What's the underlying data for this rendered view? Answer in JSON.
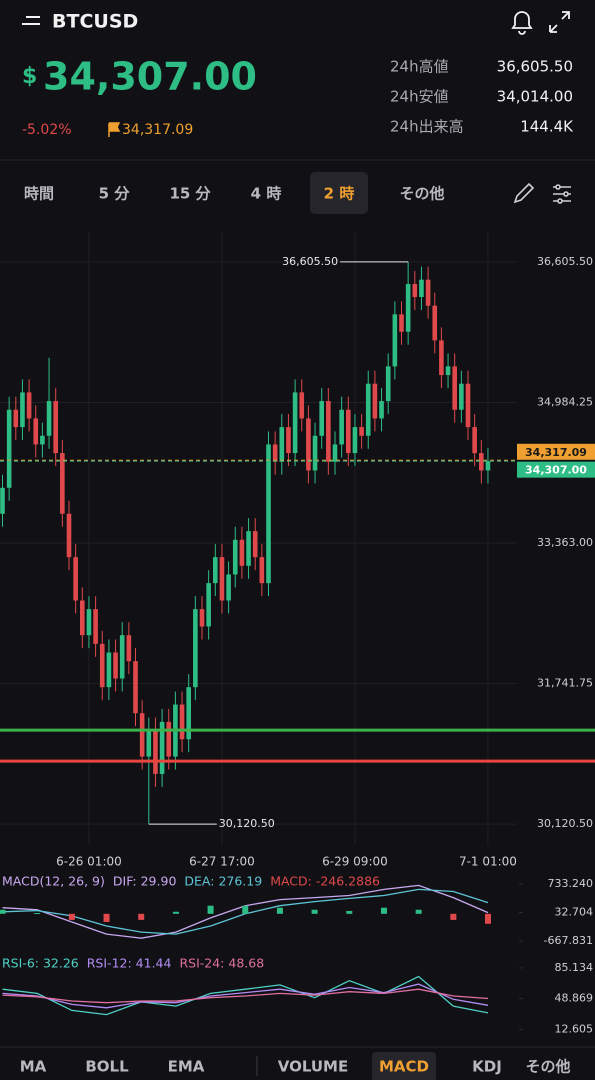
{
  "header": {
    "symbol": "BTCUSD",
    "currency": "$",
    "price": "34,307.00",
    "change": "-5.02%",
    "mark_price": "34,317.09",
    "stats": [
      {
        "label": "24h高値",
        "value": "36,605.50"
      },
      {
        "label": "24h安値",
        "value": "34,014.00"
      },
      {
        "label": "24h出来高",
        "value": "144.4K"
      }
    ]
  },
  "intervals": [
    {
      "label": "時間"
    },
    {
      "label": "5 分"
    },
    {
      "label": "15 分"
    },
    {
      "label": "4 時"
    },
    {
      "label": "2 時",
      "active": true
    },
    {
      "label": "その他"
    }
  ],
  "indicator_tabs": [
    {
      "label": "MA"
    },
    {
      "label": "BOLL"
    },
    {
      "label": "EMA"
    },
    {
      "label": "VOLUME"
    },
    {
      "label": "MACD",
      "active": true
    },
    {
      "label": "KDJ"
    },
    {
      "label": "その他"
    }
  ],
  "chart_data": [
    {
      "type": "candlestick",
      "categories": [
        null,
        null,
        null,
        null,
        null,
        null,
        null,
        null,
        null,
        null,
        null,
        null,
        null,
        "6-26 01:00",
        null,
        null,
        null,
        null,
        null,
        null,
        null,
        null,
        null,
        null,
        null,
        null,
        null,
        null,
        null,
        null,
        null,
        null,
        null,
        "6-27 17:00",
        null,
        null,
        null,
        null,
        null,
        null,
        null,
        null,
        null,
        null,
        null,
        null,
        null,
        null,
        null,
        null,
        null,
        null,
        null,
        "6-29 09:00",
        null,
        null,
        null,
        null,
        null,
        null,
        null,
        null,
        null,
        null,
        null,
        null,
        null,
        null,
        null,
        null,
        null,
        null,
        null,
        "7-1 01:00"
      ],
      "open": [
        33700,
        34000,
        34900,
        34700,
        35100,
        34800,
        34500,
        34600,
        35000,
        34400,
        33700,
        33200,
        32700,
        32300,
        32600,
        32200,
        31700,
        32100,
        31800,
        32300,
        32000,
        31400,
        30900,
        31200,
        30700,
        31300,
        30900,
        31500,
        31100,
        31700,
        32600,
        32400,
        32900,
        33200,
        32700,
        33000,
        33400,
        33100,
        33500,
        33200,
        32900,
        34500,
        34300,
        34700,
        34400,
        35100,
        34800,
        34200,
        34600,
        35000,
        34300,
        34500,
        34900,
        34400,
        34700,
        34600,
        35200,
        34800,
        35000,
        35400,
        36000,
        35800,
        36350,
        36200,
        36400,
        36100,
        35700,
        35300,
        35400,
        34900,
        35200,
        34700,
        34400,
        34200
      ],
      "high": [
        34150,
        35050,
        35050,
        35250,
        35250,
        34950,
        34750,
        35500,
        35150,
        34550,
        33850,
        33350,
        32850,
        32750,
        32750,
        32350,
        32250,
        32250,
        32450,
        32450,
        32150,
        31550,
        31350,
        31350,
        31450,
        31450,
        31650,
        31650,
        31850,
        32750,
        32750,
        33050,
        33350,
        33350,
        33150,
        33550,
        33550,
        33650,
        33650,
        33350,
        34650,
        34650,
        34850,
        34850,
        35250,
        35250,
        34950,
        34750,
        35150,
        35150,
        34650,
        35050,
        35050,
        34850,
        34850,
        35350,
        35350,
        35150,
        35550,
        36150,
        36150,
        36605.5,
        36500,
        36550,
        36550,
        36250,
        35850,
        35550,
        35550,
        35350,
        35350,
        34850,
        34550,
        34457
      ],
      "low": [
        33550,
        33850,
        34550,
        34550,
        34650,
        34350,
        34350,
        34450,
        34250,
        33550,
        33050,
        32550,
        32150,
        32150,
        32050,
        31550,
        31550,
        31650,
        31650,
        31850,
        31250,
        30750,
        30120.5,
        30550,
        30550,
        30750,
        30750,
        30950,
        30950,
        31550,
        32250,
        32250,
        32750,
        32550,
        32550,
        32850,
        32950,
        32950,
        33050,
        32750,
        32750,
        34150,
        34150,
        34250,
        34250,
        34650,
        34050,
        34050,
        34450,
        34150,
        34150,
        34350,
        34250,
        34250,
        34450,
        34450,
        34650,
        34650,
        34850,
        35250,
        35650,
        35650,
        36050,
        36050,
        35950,
        35550,
        35150,
        35150,
        34750,
        34750,
        34550,
        34250,
        34050,
        34050
      ],
      "close": [
        34000,
        34900,
        34700,
        35100,
        34800,
        34500,
        34600,
        35000,
        34400,
        33700,
        33200,
        32700,
        32300,
        32600,
        32200,
        31700,
        32100,
        31800,
        32300,
        32000,
        31400,
        30900,
        31200,
        30700,
        31300,
        30900,
        31500,
        31100,
        31700,
        32600,
        32400,
        32900,
        33200,
        32700,
        33000,
        33400,
        33100,
        33500,
        33200,
        32900,
        34500,
        34300,
        34700,
        34400,
        35100,
        34800,
        34200,
        34600,
        35000,
        34300,
        34500,
        34900,
        34400,
        34700,
        34600,
        35200,
        34800,
        35000,
        35400,
        36000,
        35800,
        36350,
        36200,
        36400,
        36100,
        35700,
        35300,
        35400,
        34900,
        35200,
        34700,
        34400,
        34200,
        34307
      ],
      "up_color": "#2ebd85",
      "down_color": "#e0494b",
      "ylim": [
        29880,
        36950
      ],
      "yticks": [
        {
          "value": 36605.5,
          "label": "36,605.50"
        },
        {
          "value": 34984.25,
          "label": "34,984.25"
        },
        {
          "value": 33363,
          "label": "33,363.00"
        },
        {
          "value": 31741.75,
          "label": "31,741.75"
        },
        {
          "value": 30120.5,
          "label": "30,120.50"
        }
      ],
      "grid": true,
      "levels": [
        {
          "value": 31205,
          "color": "#3cb34a"
        },
        {
          "value": 30847,
          "color": "#e8473f"
        }
      ],
      "price_lines": [
        {
          "value": 34317.09,
          "label": "34,317.09",
          "color": "#f0a030"
        },
        {
          "value": 34307,
          "label": "34,307.00",
          "color": "#2ebd85"
        }
      ],
      "annotations": [
        {
          "value": 36605.5,
          "label": "36,605.50"
        },
        {
          "value": 30120.5,
          "label": "30,120.50"
        }
      ]
    },
    {
      "type": "indicator",
      "title": "MACD(12, 26, 9)",
      "series": [
        {
          "name": "DIF: 29.90",
          "color": "#c8a8f0",
          "values": [
            150,
            100,
            -200,
            -500,
            -600,
            -450,
            -100,
            200,
            350,
            400,
            450,
            600,
            700,
            400,
            30
          ]
        },
        {
          "name": "DEA: 276.19",
          "color": "#5ec5d6",
          "values": [
            50,
            80,
            -50,
            -300,
            -450,
            -500,
            -300,
            0,
            200,
            300,
            380,
            450,
            600,
            550,
            276
          ]
        },
        {
          "name": "MACD: -246.2886",
          "color": "#e0494b",
          "style": "bars",
          "values": [
            100,
            20,
            -150,
            -200,
            -150,
            50,
            200,
            200,
            150,
            100,
            70,
            150,
            100,
            -150,
            -246
          ]
        }
      ],
      "up_color": "#2ebd85",
      "ylim": [
        -890,
        955
      ],
      "yticks": [
        {
          "value": 733.24,
          "label": "733.240"
        },
        32.704,
        -667.831
      ]
    },
    {
      "type": "indicator",
      "series": [
        {
          "name": "RSI-6: 32.26",
          "color": "#4fd1c5",
          "values": [
            60,
            55,
            35,
            30,
            45,
            40,
            55,
            60,
            65,
            50,
            70,
            55,
            75,
            40,
            32
          ]
        },
        {
          "name": "RSI-12: 41.44",
          "color": "#b28cf5",
          "values": [
            55,
            52,
            42,
            38,
            45,
            44,
            52,
            56,
            60,
            54,
            62,
            56,
            66,
            48,
            41
          ]
        },
        {
          "name": "RSI-24: 48.68",
          "color": "#e06fa0",
          "values": [
            53,
            51,
            46,
            44,
            46,
            46,
            50,
            52,
            55,
            53,
            57,
            55,
            60,
            52,
            49
          ]
        }
      ],
      "ylim": [
        0,
        98
      ],
      "yticks": [
        85.134,
        48.869,
        12.605
      ]
    }
  ]
}
